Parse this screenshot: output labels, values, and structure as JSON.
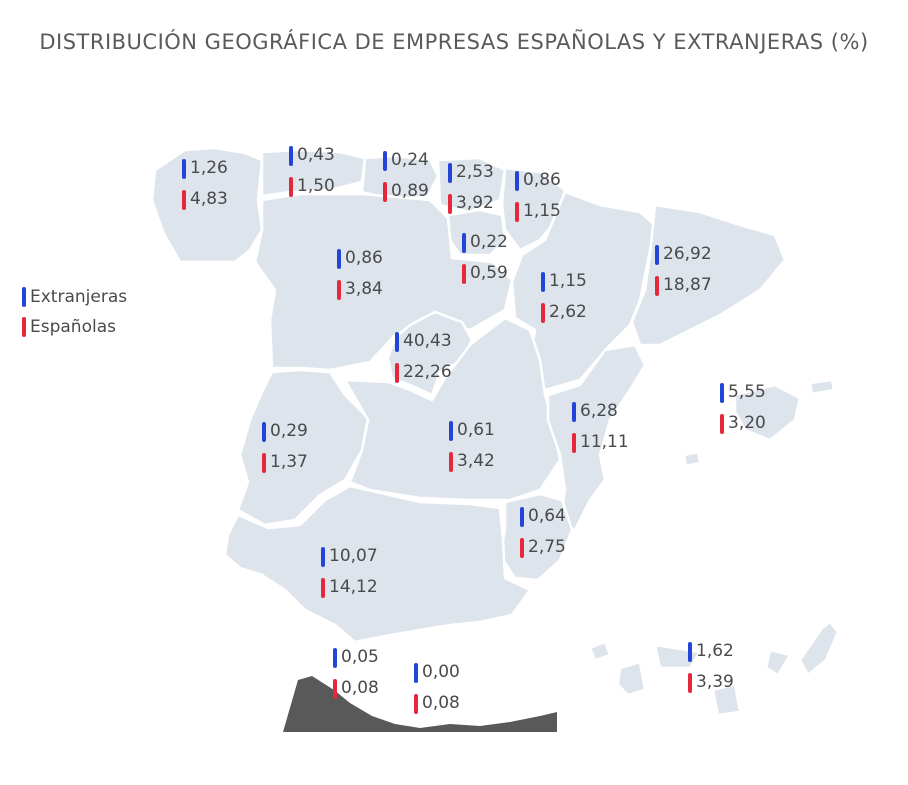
{
  "title": "DISTRIBUCIÓN GEOGRÁFICA DE EMPRESAS ESPAÑOLAS Y EXTRANJERAS (%)",
  "legend": {
    "extranjeras": "Extranjeras",
    "espanolas": "Españolas"
  },
  "colors": {
    "extranjeras": "#2446d8",
    "espanolas": "#e6283c",
    "land": "#dde4ec",
    "africa": "#595959"
  },
  "chart_data": {
    "type": "table",
    "title": "DISTRIBUCIÓN GEOGRÁFICA DE EMPRESAS ESPAÑOLAS Y EXTRANJERAS (%)",
    "series_names": [
      "Extranjeras",
      "Españolas"
    ],
    "regions": [
      {
        "extranjeras": "1,26",
        "espanolas": "4,83"
      },
      {
        "extranjeras": "0,43",
        "espanolas": "1,50"
      },
      {
        "extranjeras": "0,24",
        "espanolas": "0,89"
      },
      {
        "extranjeras": "2,53",
        "espanolas": "3,92"
      },
      {
        "extranjeras": "0,86",
        "espanolas": "1,15"
      },
      {
        "extranjeras": "0,22",
        "espanolas": "0,59"
      },
      {
        "extranjeras": "0,86",
        "espanolas": "3,84"
      },
      {
        "extranjeras": "1,15",
        "espanolas": "2,62"
      },
      {
        "extranjeras": "26,92",
        "espanolas": "18,87"
      },
      {
        "extranjeras": "40,43",
        "espanolas": "22,26"
      },
      {
        "extranjeras": "5,55",
        "espanolas": "3,20"
      },
      {
        "extranjeras": "0,29",
        "espanolas": "1,37"
      },
      {
        "extranjeras": "0,61",
        "espanolas": "3,42"
      },
      {
        "extranjeras": "6,28",
        "espanolas": "11,11"
      },
      {
        "extranjeras": "0,64",
        "espanolas": "2,75"
      },
      {
        "extranjeras": "10,07",
        "espanolas": "14,12"
      },
      {
        "extranjeras": "0,05",
        "espanolas": "0,08"
      },
      {
        "extranjeras": "0,00",
        "espanolas": "0,08"
      },
      {
        "extranjeras": "1,62",
        "espanolas": "3,39"
      }
    ]
  }
}
